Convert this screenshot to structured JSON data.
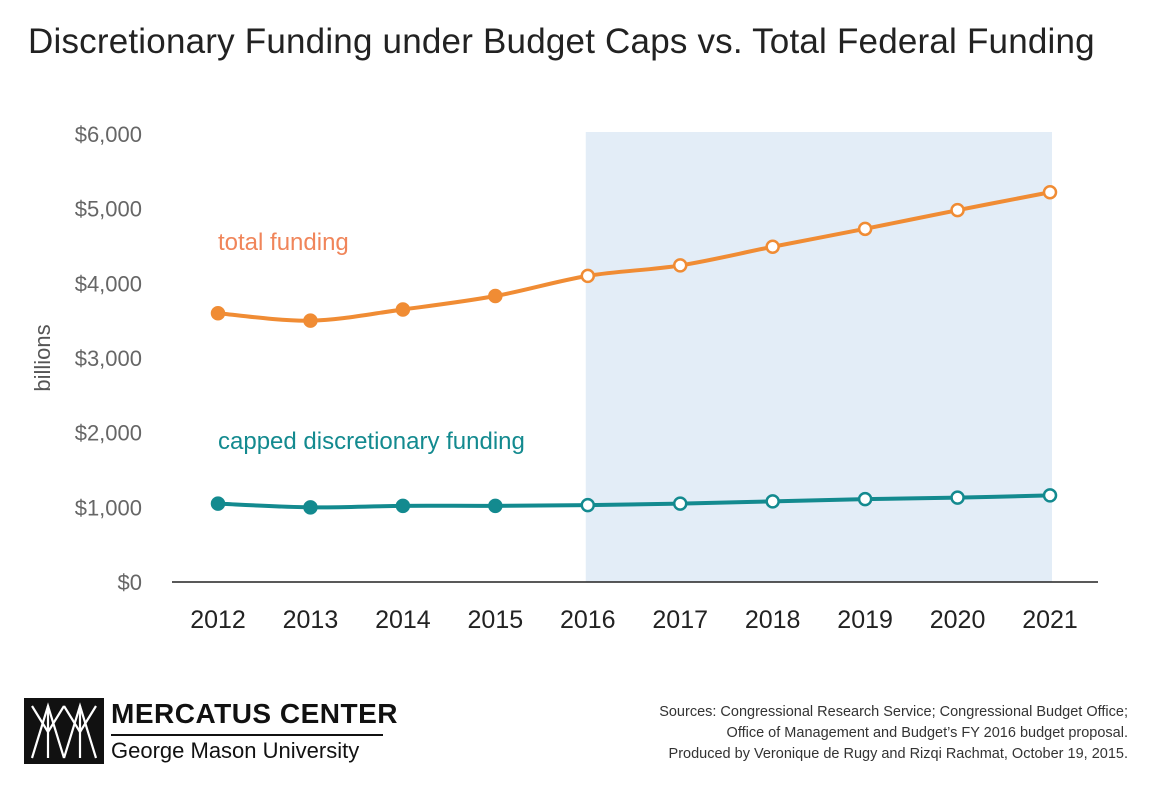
{
  "title": "Discretionary Funding under Budget Caps vs. Total Federal Funding",
  "chart_data": {
    "type": "line",
    "title": "Discretionary Funding under Budget Caps vs. Total Federal Funding",
    "xlabel": "",
    "ylabel": "billions",
    "ylim": [
      0,
      6000
    ],
    "yticks": [
      0,
      1000,
      2000,
      3000,
      4000,
      5000,
      6000
    ],
    "ytick_labels": [
      "$0",
      "$1,000",
      "$2,000",
      "$3,000",
      "$4,000",
      "$5,000",
      "$6,000"
    ],
    "categories": [
      "2012",
      "2013",
      "2014",
      "2015",
      "2016",
      "2017",
      "2018",
      "2019",
      "2020",
      "2021"
    ],
    "shaded_from": "2016",
    "shaded_to": "2021",
    "grid": false,
    "series": [
      {
        "name": "total funding",
        "color": "#f08c34",
        "values": [
          3600,
          3500,
          3650,
          3830,
          4100,
          4240,
          4490,
          4730,
          4980,
          5220
        ],
        "filled_points_through": "2015"
      },
      {
        "name": "capped discretionary funding",
        "color": "#138a8f",
        "values": [
          1050,
          1000,
          1020,
          1020,
          1030,
          1050,
          1080,
          1110,
          1130,
          1160
        ],
        "filled_points_through": "2015"
      }
    ]
  },
  "colors": {
    "shade": "#e3edf7",
    "axis": "#222222",
    "total_label": "#f0855a",
    "capped_label": "#138a8f"
  },
  "logo": {
    "icon": "mercatus-logo-icon",
    "name": "MERCATUS CENTER",
    "subtitle": "George Mason University"
  },
  "sources": [
    "Sources: Congressional Research Service; Congressional Budget Office;",
    "Office of Management and Budget’s FY 2016 budget proposal.",
    "Produced by Veronique de Rugy and Rizqi Rachmat, October 19, 2015."
  ]
}
